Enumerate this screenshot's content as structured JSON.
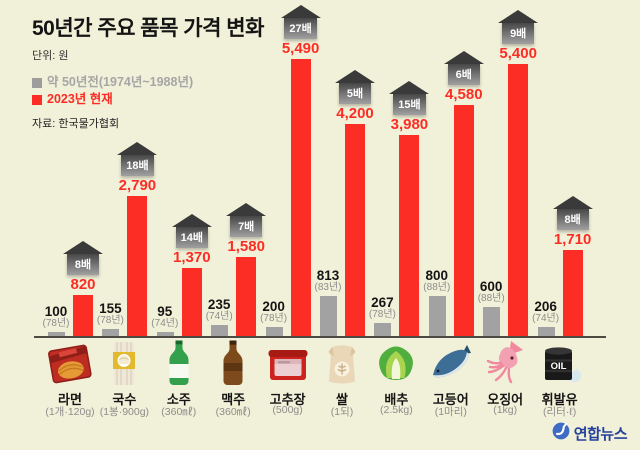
{
  "header": {
    "title": "50년간 주요 품목 가격 변화",
    "unit_label": "단위: 원",
    "legend": [
      {
        "label": "약 50년전(1974년~1988년)",
        "color": "#9d9d9d"
      },
      {
        "label": "2023년 현재",
        "color": "#fc2d25"
      }
    ],
    "source": "자료: 한국물가협회"
  },
  "chart_data": {
    "type": "bar",
    "title": "50년간 주요 품목 가격 변화",
    "ylabel": "원",
    "ylim": [
      0,
      5490
    ],
    "grid": false,
    "legend_position": "top-left",
    "categories": [
      "라면",
      "국수",
      "소주",
      "맥주",
      "고추장",
      "쌀",
      "배추",
      "고등어",
      "오징어",
      "휘발유"
    ],
    "quantities": [
      "(1개·120g)",
      "(1봉·900g)",
      "(360㎖)",
      "(360㎖)",
      "(500g)",
      "(1되)",
      "(2.5kg)",
      "(1마리)",
      "(1kg)",
      "(리터·ℓ)"
    ],
    "series": [
      {
        "name": "약 50년전(1974년~1988년)",
        "color": "#a2a2a2",
        "values": [
          100,
          155,
          95,
          235,
          200,
          813,
          267,
          800,
          600,
          206
        ],
        "labels": [
          "100",
          "155",
          "95",
          "235",
          "200",
          "813",
          "267",
          "800",
          "600",
          "206"
        ],
        "years": [
          "(78년)",
          "(78년)",
          "(74년)",
          "(74년)",
          "(78년)",
          "(83년)",
          "(78년)",
          "(88년)",
          "(88년)",
          "(74년)"
        ]
      },
      {
        "name": "2023년 현재",
        "color": "#fc2d25",
        "values": [
          820,
          2790,
          1370,
          1580,
          5490,
          4200,
          3980,
          4580,
          5400,
          1710
        ],
        "labels": [
          "820",
          "2,790",
          "1,370",
          "1,580",
          "5,490",
          "4,200",
          "3,980",
          "4,580",
          "5,400",
          "1,710"
        ]
      }
    ],
    "multipliers": [
      "8배",
      "18배",
      "14배",
      "7배",
      "27배",
      "5배",
      "15배",
      "6배",
      "9배",
      "8배"
    ],
    "icons": [
      "ramen-pack",
      "noodle-pack",
      "soju-bottle",
      "beer-bottle",
      "gochujang-tub",
      "rice-sack",
      "cabbage",
      "mackerel",
      "squid",
      "oil-drum"
    ]
  },
  "footer": {
    "logo_text": "연합뉴스"
  },
  "colors": {
    "background": "#f1f0d8",
    "bar_old": "#a2a2a2",
    "bar_new": "#fc2d25",
    "badge": "#3a3a3a",
    "axis_line": "#4c4a42",
    "logo_blue": "#24419c"
  }
}
